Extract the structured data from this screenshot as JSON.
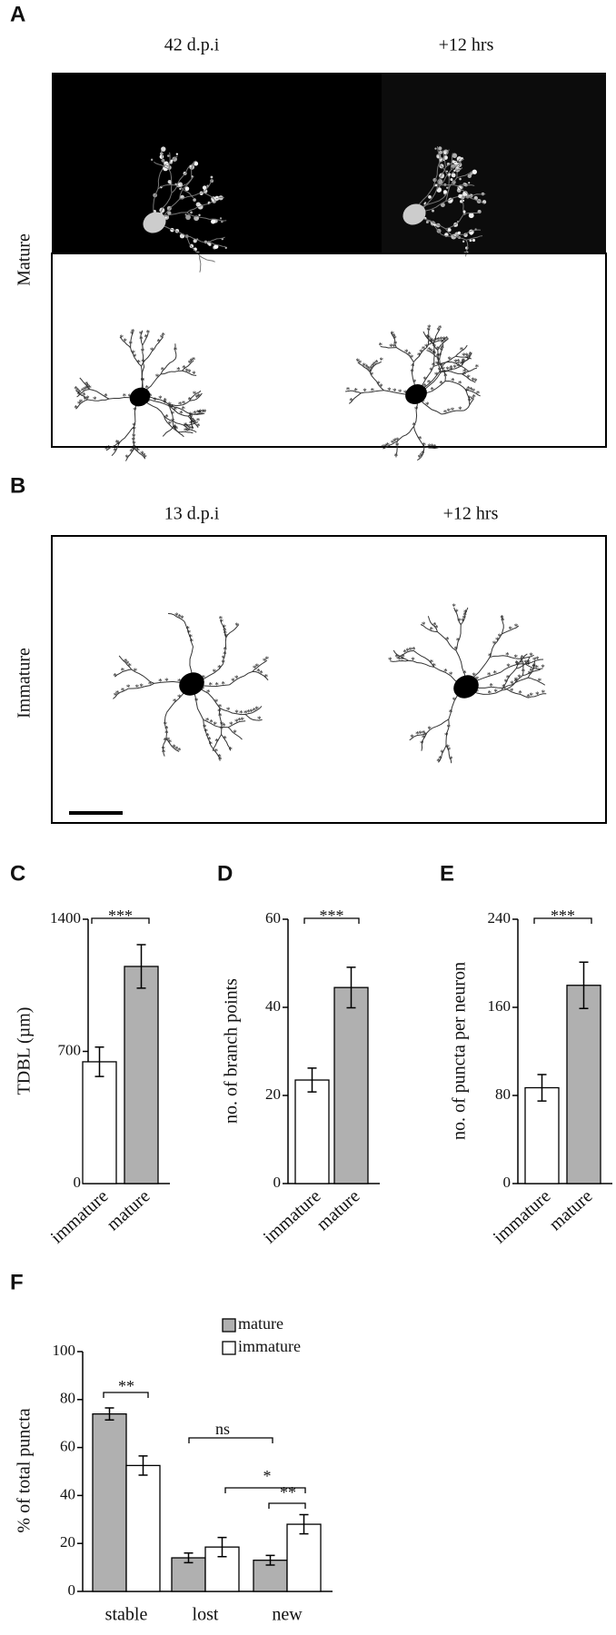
{
  "panels": [
    {
      "label": "A",
      "col_titles": [
        "42 d.p.i",
        "+12 hrs"
      ],
      "row_label": "Mature"
    },
    {
      "label": "B",
      "col_titles": [
        "13 d.p.i",
        "+12 hrs"
      ],
      "row_label": "Immature"
    }
  ],
  "chart_data": [
    {
      "type": "bar",
      "panel_label": "C",
      "y_label": "TDBL (µm)",
      "categories": [
        "immature",
        "mature"
      ],
      "values": [
        645,
        1150
      ],
      "errors": [
        78,
        115
      ],
      "colors": [
        "#ffffff",
        "#b0b0b0"
      ],
      "ylim": [
        0,
        1400
      ],
      "yticks": [
        0,
        700,
        1400
      ],
      "annotation": "***"
    },
    {
      "type": "bar",
      "panel_label": "D",
      "y_label": "no. of branch points",
      "categories": [
        "immature",
        "mature"
      ],
      "values": [
        23.5,
        44.5
      ],
      "errors": [
        2.7,
        4.6
      ],
      "colors": [
        "#ffffff",
        "#b0b0b0"
      ],
      "ylim": [
        0,
        60
      ],
      "yticks": [
        0,
        20,
        40,
        60
      ],
      "annotation": "***"
    },
    {
      "type": "bar",
      "panel_label": "E",
      "y_label": "no. of puncta per neuron",
      "categories": [
        "immature",
        "mature"
      ],
      "values": [
        87,
        180
      ],
      "errors": [
        12,
        21
      ],
      "colors": [
        "#ffffff",
        "#b0b0b0"
      ],
      "ylim": [
        0,
        240
      ],
      "yticks": [
        0,
        80,
        160,
        240
      ],
      "annotation": "***"
    },
    {
      "type": "grouped-bar",
      "panel_label": "F",
      "y_label": "% of total puncta",
      "categories": [
        "stable",
        "lost",
        "new"
      ],
      "series": [
        {
          "name": "mature",
          "color": "#b0b0b0",
          "values": [
            74,
            14,
            13
          ],
          "errors": [
            2.5,
            2,
            2
          ]
        },
        {
          "name": "immature",
          "color": "#ffffff",
          "values": [
            52.5,
            18.5,
            28
          ],
          "errors": [
            4,
            4,
            4
          ]
        }
      ],
      "ylim": [
        0,
        100
      ],
      "yticks": [
        0,
        20,
        40,
        60,
        80,
        100
      ],
      "annotations": [
        "**",
        "ns",
        "*",
        "**"
      ]
    }
  ]
}
